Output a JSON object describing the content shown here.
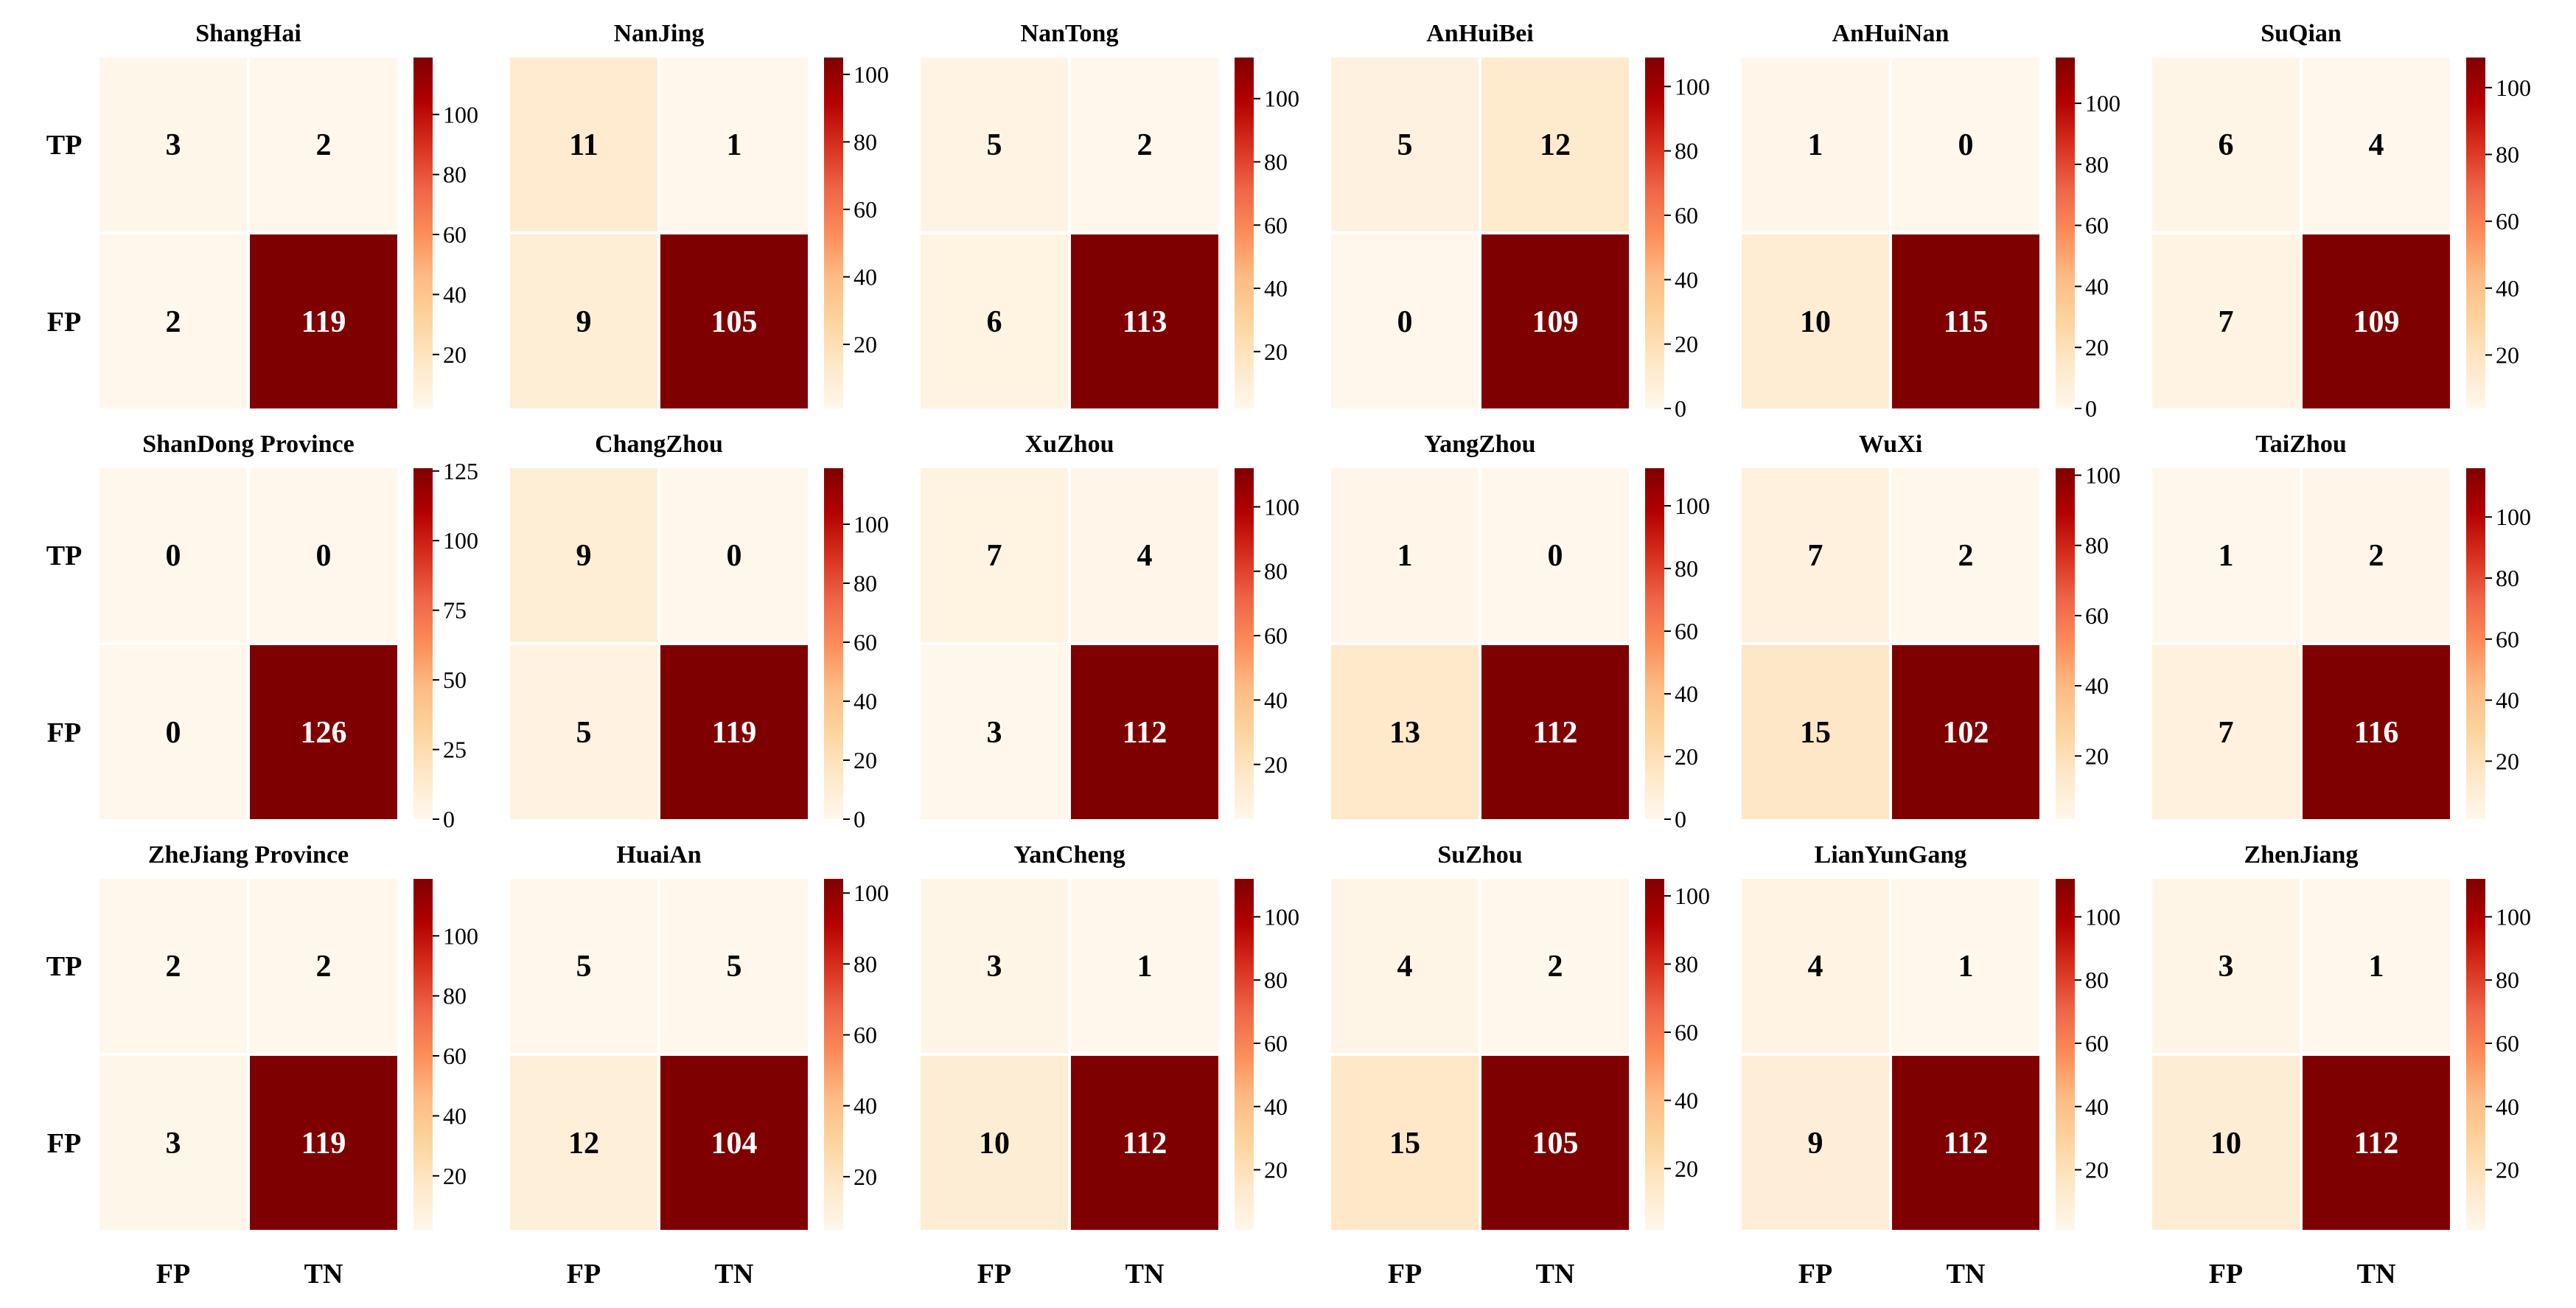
{
  "chart_data": {
    "type": "heatmap",
    "layout": "grid of 18 confusion-matrix heatmaps, 3 rows x 6 columns, each with its own colorbar",
    "row_labels": [
      "TP",
      "FP"
    ],
    "col_labels": [
      "FP",
      "TN"
    ],
    "colormap": "OrRd",
    "colormap_stops": [
      "#fff7ec",
      "#fee8c8",
      "#fdd49e",
      "#fdbb84",
      "#fc8d59",
      "#ef6548",
      "#d7301f",
      "#b30000",
      "#7f0000"
    ],
    "cell_text_color_light": "#ffffff",
    "cell_text_color_dark": "#000000",
    "panels": [
      {
        "title": "ShangHai",
        "values": [
          [
            3,
            2
          ],
          [
            2,
            119
          ]
        ],
        "vmin": 2,
        "vmax": 119,
        "cbar_ticks": [
          20,
          40,
          60,
          80,
          100
        ]
      },
      {
        "title": "NanJing",
        "values": [
          [
            11,
            1
          ],
          [
            9,
            105
          ]
        ],
        "vmin": 1,
        "vmax": 105,
        "cbar_ticks": [
          20,
          40,
          60,
          80,
          100
        ]
      },
      {
        "title": "NanTong",
        "values": [
          [
            5,
            2
          ],
          [
            6,
            113
          ]
        ],
        "vmin": 2,
        "vmax": 113,
        "cbar_ticks": [
          20,
          40,
          60,
          80,
          100
        ]
      },
      {
        "title": "AnHuiBei",
        "values": [
          [
            5,
            12
          ],
          [
            0,
            109
          ]
        ],
        "vmin": 0,
        "vmax": 109,
        "cbar_ticks": [
          0,
          20,
          40,
          60,
          80,
          100
        ]
      },
      {
        "title": "AnHuiNan",
        "values": [
          [
            1,
            0
          ],
          [
            10,
            115
          ]
        ],
        "vmin": 0,
        "vmax": 115,
        "cbar_ticks": [
          0,
          20,
          40,
          60,
          80,
          100
        ]
      },
      {
        "title": "SuQian",
        "values": [
          [
            6,
            4
          ],
          [
            7,
            109
          ]
        ],
        "vmin": 4,
        "vmax": 109,
        "cbar_ticks": [
          20,
          40,
          60,
          80,
          100
        ]
      },
      {
        "title": "ShanDong Province",
        "values": [
          [
            0,
            0
          ],
          [
            0,
            126
          ]
        ],
        "vmin": 0,
        "vmax": 126,
        "cbar_ticks": [
          0,
          25,
          50,
          75,
          100,
          125
        ]
      },
      {
        "title": "ChangZhou",
        "values": [
          [
            9,
            0
          ],
          [
            5,
            119
          ]
        ],
        "vmin": 0,
        "vmax": 119,
        "cbar_ticks": [
          0,
          20,
          40,
          60,
          80,
          100
        ]
      },
      {
        "title": "XuZhou",
        "values": [
          [
            7,
            4
          ],
          [
            3,
            112
          ]
        ],
        "vmin": 3,
        "vmax": 112,
        "cbar_ticks": [
          20,
          40,
          60,
          80,
          100
        ]
      },
      {
        "title": "YangZhou",
        "values": [
          [
            1,
            0
          ],
          [
            13,
            112
          ]
        ],
        "vmin": 0,
        "vmax": 112,
        "cbar_ticks": [
          0,
          20,
          40,
          60,
          80,
          100
        ]
      },
      {
        "title": "WuXi",
        "values": [
          [
            7,
            2
          ],
          [
            15,
            102
          ]
        ],
        "vmin": 2,
        "vmax": 102,
        "cbar_ticks": [
          20,
          40,
          60,
          80,
          100
        ]
      },
      {
        "title": "TaiZhou",
        "values": [
          [
            1,
            2
          ],
          [
            7,
            116
          ]
        ],
        "vmin": 1,
        "vmax": 116,
        "cbar_ticks": [
          20,
          40,
          60,
          80,
          100
        ]
      },
      {
        "title": "ZheJiang Province",
        "values": [
          [
            2,
            2
          ],
          [
            3,
            119
          ]
        ],
        "vmin": 2,
        "vmax": 119,
        "cbar_ticks": [
          20,
          40,
          60,
          80,
          100
        ]
      },
      {
        "title": "HuaiAn",
        "values": [
          [
            5,
            5
          ],
          [
            12,
            104
          ]
        ],
        "vmin": 5,
        "vmax": 104,
        "cbar_ticks": [
          20,
          40,
          60,
          80,
          100
        ]
      },
      {
        "title": "YanCheng",
        "values": [
          [
            3,
            1
          ],
          [
            10,
            112
          ]
        ],
        "vmin": 1,
        "vmax": 112,
        "cbar_ticks": [
          20,
          40,
          60,
          80,
          100
        ]
      },
      {
        "title": "SuZhou",
        "values": [
          [
            4,
            2
          ],
          [
            15,
            105
          ]
        ],
        "vmin": 2,
        "vmax": 105,
        "cbar_ticks": [
          20,
          40,
          60,
          80,
          100
        ]
      },
      {
        "title": "LianYunGang",
        "values": [
          [
            4,
            1
          ],
          [
            9,
            112
          ]
        ],
        "vmin": 1,
        "vmax": 112,
        "cbar_ticks": [
          20,
          40,
          60,
          80,
          100
        ]
      },
      {
        "title": "ZhenJiang",
        "values": [
          [
            3,
            1
          ],
          [
            10,
            112
          ]
        ],
        "vmin": 1,
        "vmax": 112,
        "cbar_ticks": [
          20,
          40,
          60,
          80,
          100
        ]
      }
    ]
  }
}
